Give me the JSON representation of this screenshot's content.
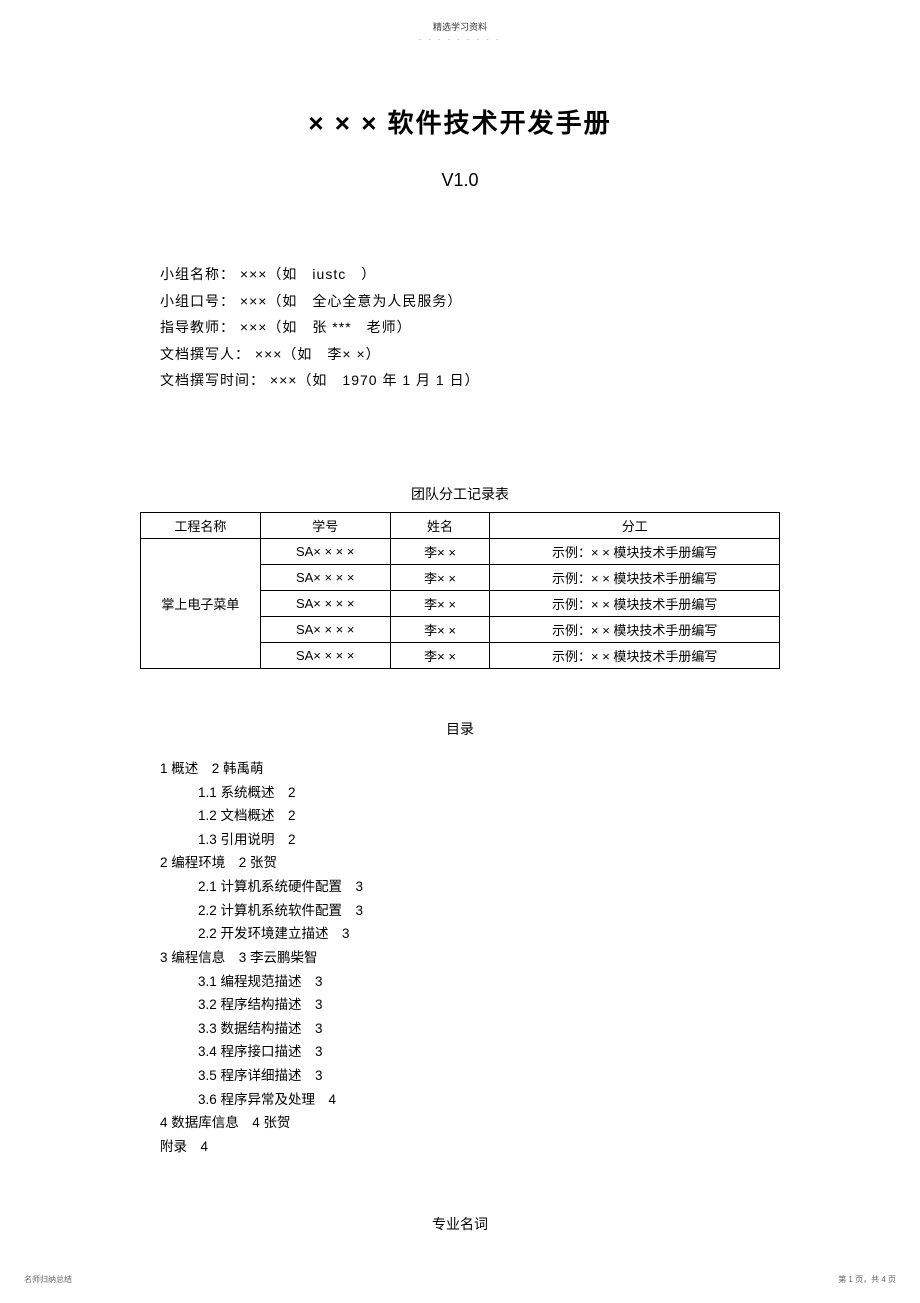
{
  "header": {
    "small_text": "精选学习资料",
    "dots": "- - - - - - - - -"
  },
  "title": "× × × 软件技术开发手册",
  "version": "V1.0",
  "info": {
    "team_name": "小组名称： ×××（如　iustc　）",
    "team_slogan": "小组口号： ×××（如　全心全意为人民服务）",
    "advisor": "指导教师： ×××（如　张 ***　老师）",
    "author": "文档撰写人： ×××（如　李× ×）",
    "date": "文档撰写时间： ×××（如　1970 年 1 月 1 日）"
  },
  "table": {
    "title": "团队分工记录表",
    "headers": [
      "工程名称",
      "学号",
      "姓名",
      "分工"
    ],
    "project_name": "掌上电子菜单",
    "rows": [
      {
        "id": "SA× × × ×",
        "name": "李× ×",
        "work": "示例：× × 模块技术手册编写"
      },
      {
        "id": "SA× × × ×",
        "name": "李× ×",
        "work": "示例：× × 模块技术手册编写"
      },
      {
        "id": "SA× × × ×",
        "name": "李× ×",
        "work": "示例：× × 模块技术手册编写"
      },
      {
        "id": "SA× × × ×",
        "name": "李× ×",
        "work": "示例：× × 模块技术手册编写"
      },
      {
        "id": "SA× × × ×",
        "name": "李× ×",
        "work": "示例：× × 模块技术手册编写"
      }
    ]
  },
  "toc": {
    "title": "目录",
    "items": [
      {
        "level": 1,
        "text": "1 概述　2 韩禹萌"
      },
      {
        "level": 2,
        "text": "1.1 系统概述　2"
      },
      {
        "level": 2,
        "text": "1.2 文档概述　2"
      },
      {
        "level": 2,
        "text": "1.3 引用说明　2"
      },
      {
        "level": 1,
        "text": "2 编程环境　2 张贺"
      },
      {
        "level": 2,
        "text": "2.1 计算机系统硬件配置　3"
      },
      {
        "level": 2,
        "text": "2.2 计算机系统软件配置　3"
      },
      {
        "level": 2,
        "text": "2.2 开发环境建立描述　3"
      },
      {
        "level": 1,
        "text": "3 编程信息　3 李云鹏柴智"
      },
      {
        "level": 2,
        "text": "3.1 编程规范描述　3"
      },
      {
        "level": 2,
        "text": "3.2 程序结构描述　3"
      },
      {
        "level": 2,
        "text": "3.3 数据结构描述　3"
      },
      {
        "level": 2,
        "text": "3.4 程序接口描述　3"
      },
      {
        "level": 2,
        "text": "3.5 程序详细描述　3"
      },
      {
        "level": 2,
        "text": "3.6 程序异常及处理　4"
      },
      {
        "level": 1,
        "text": "4 数据库信息　4 张贺"
      },
      {
        "level": 1,
        "text": "附录　4"
      }
    ]
  },
  "section_heading": "专业名词",
  "footer": {
    "left": "名师归纳总结",
    "right": "第 1 页，共 4 页"
  }
}
